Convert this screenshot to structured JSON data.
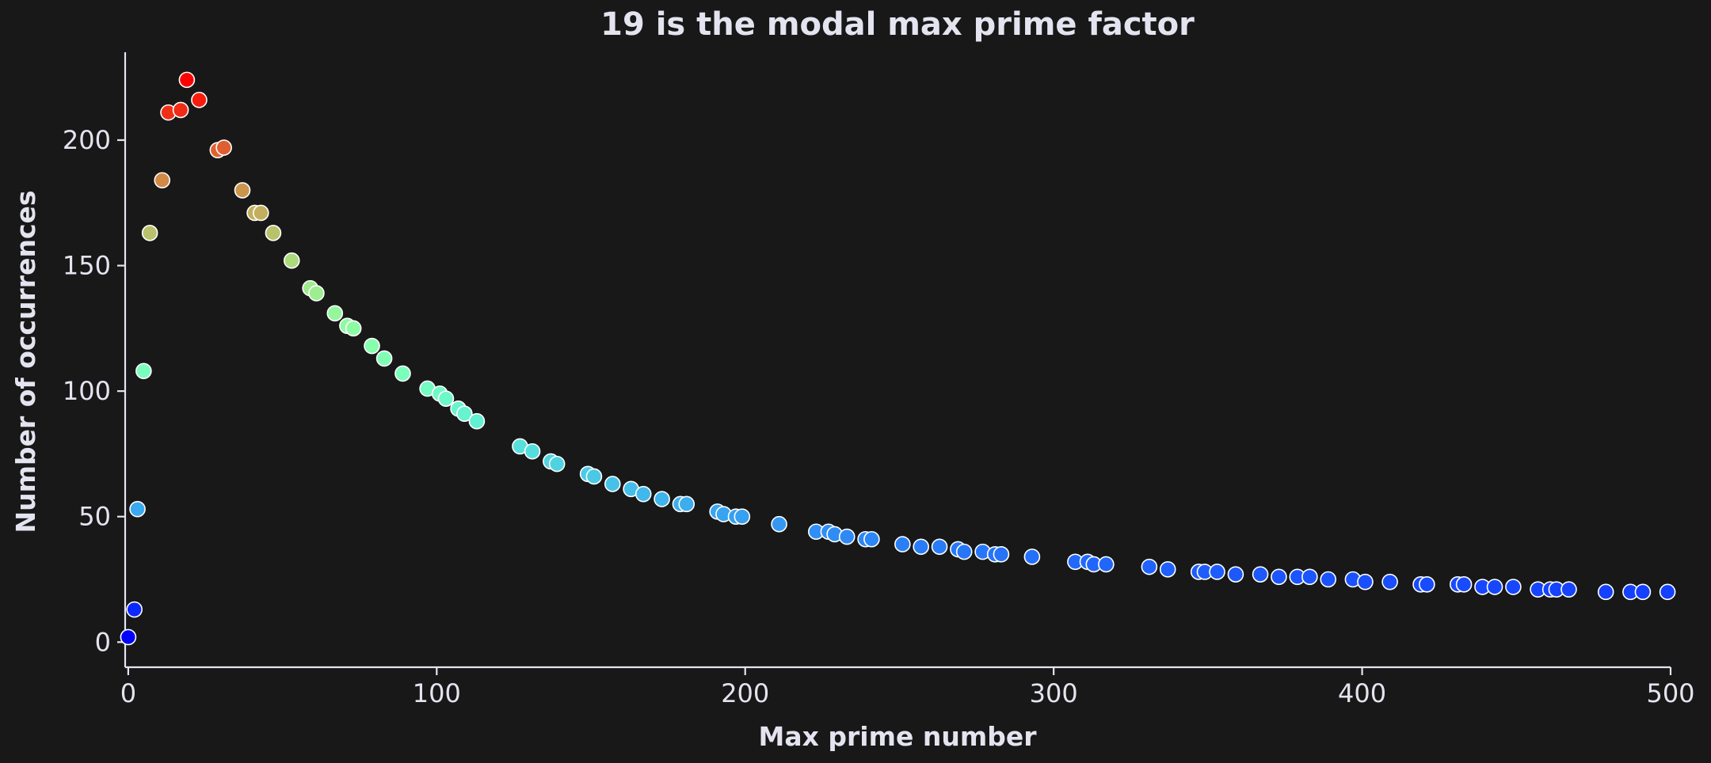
{
  "chart_data": {
    "type": "scatter",
    "title": "19 is the modal max prime factor",
    "xlabel": "Max prime number",
    "ylabel": "Number of occurrences",
    "xlim": [
      -1,
      500
    ],
    "ylim": [
      -10,
      235
    ],
    "xticks": [
      0,
      100,
      200,
      300,
      400,
      500
    ],
    "yticks": [
      0,
      50,
      100,
      150,
      200
    ],
    "grid": false,
    "colormap": "rainbow (color mapped to y value)",
    "points": [
      {
        "x": 0,
        "y": 2
      },
      {
        "x": 2,
        "y": 13
      },
      {
        "x": 3,
        "y": 53
      },
      {
        "x": 5,
        "y": 108
      },
      {
        "x": 7,
        "y": 163
      },
      {
        "x": 11,
        "y": 184
      },
      {
        "x": 13,
        "y": 211
      },
      {
        "x": 17,
        "y": 212
      },
      {
        "x": 19,
        "y": 224
      },
      {
        "x": 23,
        "y": 216
      },
      {
        "x": 29,
        "y": 196
      },
      {
        "x": 31,
        "y": 197
      },
      {
        "x": 37,
        "y": 180
      },
      {
        "x": 41,
        "y": 171
      },
      {
        "x": 43,
        "y": 171
      },
      {
        "x": 47,
        "y": 163
      },
      {
        "x": 53,
        "y": 152
      },
      {
        "x": 59,
        "y": 141
      },
      {
        "x": 61,
        "y": 139
      },
      {
        "x": 67,
        "y": 131
      },
      {
        "x": 71,
        "y": 126
      },
      {
        "x": 73,
        "y": 125
      },
      {
        "x": 79,
        "y": 118
      },
      {
        "x": 83,
        "y": 113
      },
      {
        "x": 89,
        "y": 107
      },
      {
        "x": 97,
        "y": 101
      },
      {
        "x": 101,
        "y": 99
      },
      {
        "x": 103,
        "y": 97
      },
      {
        "x": 107,
        "y": 93
      },
      {
        "x": 109,
        "y": 91
      },
      {
        "x": 113,
        "y": 88
      },
      {
        "x": 127,
        "y": 78
      },
      {
        "x": 131,
        "y": 76
      },
      {
        "x": 137,
        "y": 72
      },
      {
        "x": 139,
        "y": 71
      },
      {
        "x": 149,
        "y": 67
      },
      {
        "x": 151,
        "y": 66
      },
      {
        "x": 157,
        "y": 63
      },
      {
        "x": 163,
        "y": 61
      },
      {
        "x": 167,
        "y": 59
      },
      {
        "x": 173,
        "y": 57
      },
      {
        "x": 179,
        "y": 55
      },
      {
        "x": 181,
        "y": 55
      },
      {
        "x": 191,
        "y": 52
      },
      {
        "x": 193,
        "y": 51
      },
      {
        "x": 197,
        "y": 50
      },
      {
        "x": 199,
        "y": 50
      },
      {
        "x": 211,
        "y": 47
      },
      {
        "x": 223,
        "y": 44
      },
      {
        "x": 227,
        "y": 44
      },
      {
        "x": 229,
        "y": 43
      },
      {
        "x": 233,
        "y": 42
      },
      {
        "x": 239,
        "y": 41
      },
      {
        "x": 241,
        "y": 41
      },
      {
        "x": 251,
        "y": 39
      },
      {
        "x": 257,
        "y": 38
      },
      {
        "x": 263,
        "y": 38
      },
      {
        "x": 269,
        "y": 37
      },
      {
        "x": 271,
        "y": 36
      },
      {
        "x": 277,
        "y": 36
      },
      {
        "x": 281,
        "y": 35
      },
      {
        "x": 283,
        "y": 35
      },
      {
        "x": 293,
        "y": 34
      },
      {
        "x": 307,
        "y": 32
      },
      {
        "x": 311,
        "y": 32
      },
      {
        "x": 313,
        "y": 31
      },
      {
        "x": 317,
        "y": 31
      },
      {
        "x": 331,
        "y": 30
      },
      {
        "x": 337,
        "y": 29
      },
      {
        "x": 347,
        "y": 28
      },
      {
        "x": 349,
        "y": 28
      },
      {
        "x": 353,
        "y": 28
      },
      {
        "x": 359,
        "y": 27
      },
      {
        "x": 367,
        "y": 27
      },
      {
        "x": 373,
        "y": 26
      },
      {
        "x": 379,
        "y": 26
      },
      {
        "x": 383,
        "y": 26
      },
      {
        "x": 389,
        "y": 25
      },
      {
        "x": 397,
        "y": 25
      },
      {
        "x": 401,
        "y": 24
      },
      {
        "x": 409,
        "y": 24
      },
      {
        "x": 419,
        "y": 23
      },
      {
        "x": 421,
        "y": 23
      },
      {
        "x": 431,
        "y": 23
      },
      {
        "x": 433,
        "y": 23
      },
      {
        "x": 439,
        "y": 22
      },
      {
        "x": 443,
        "y": 22
      },
      {
        "x": 449,
        "y": 22
      },
      {
        "x": 457,
        "y": 21
      },
      {
        "x": 461,
        "y": 21
      },
      {
        "x": 463,
        "y": 21
      },
      {
        "x": 467,
        "y": 21
      },
      {
        "x": 479,
        "y": 20
      },
      {
        "x": 487,
        "y": 20
      },
      {
        "x": 491,
        "y": 20
      },
      {
        "x": 499,
        "y": 20
      }
    ]
  }
}
